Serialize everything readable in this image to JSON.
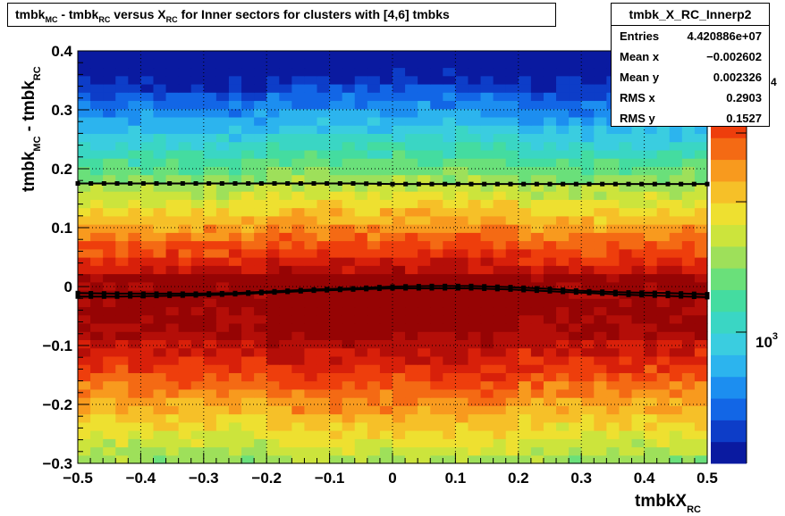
{
  "chart_data": {
    "type": "heatmap",
    "title_parts": [
      "tmbk",
      "MC",
      " - tmbk",
      "RC",
      " versus X",
      "RC",
      " for Inner sectors for clusters with [4,6] tmbks"
    ],
    "xlabel_main": "tmbkX",
    "xlabel_sub": "RC",
    "ylabel_parts": [
      "tmbk",
      "MC",
      " - tmbk",
      "RC"
    ],
    "xlim": [
      -0.5,
      0.5
    ],
    "ylim": [
      -0.3,
      0.4
    ],
    "x_ticks": [
      "−0.5",
      "−0.4",
      "−0.3",
      "−0.2",
      "−0.1",
      "0",
      "0.1",
      "0.2",
      "0.3",
      "0.4",
      "0.5"
    ],
    "x_tick_values": [
      -0.5,
      -0.4,
      -0.3,
      -0.2,
      -0.1,
      0,
      0.1,
      0.2,
      0.3,
      0.4,
      0.5
    ],
    "y_ticks": [
      "−0.3",
      "−0.2",
      "−0.1",
      "0",
      "0.1",
      "0.2",
      "0.3",
      "0.4"
    ],
    "y_tick_values": [
      -0.3,
      -0.2,
      -0.1,
      0,
      0.1,
      0.2,
      0.3,
      0.4
    ],
    "grid": true,
    "z_scale": "log",
    "z_labels": [
      "10",
      "3",
      "4"
    ],
    "profile_means": [
      -0.011,
      -0.012,
      -0.012,
      -0.012,
      -0.011,
      -0.008,
      -0.005,
      -0.003,
      0.0,
      0.001,
      0.001,
      -0.001,
      -0.004,
      -0.008,
      -0.01,
      -0.011,
      -0.013
    ],
    "profile_upper": [
      0.175,
      0.175,
      0.175,
      0.175,
      0.175,
      0.175,
      0.175,
      0.175,
      0.174,
      0.174,
      0.174,
      0.174,
      0.174,
      0.174,
      0.174,
      0.174,
      0.174
    ],
    "profile_lower": [
      -0.017,
      -0.017,
      -0.016,
      -0.015,
      -0.013,
      -0.01,
      -0.007,
      -0.005,
      -0.003,
      -0.003,
      -0.003,
      -0.005,
      -0.008,
      -0.011,
      -0.014,
      -0.016,
      -0.018
    ],
    "profile_x": [
      -0.5,
      -0.4375,
      -0.375,
      -0.3125,
      -0.25,
      -0.1875,
      -0.125,
      -0.0625,
      0,
      0.0625,
      0.125,
      0.1875,
      0.25,
      0.3125,
      0.375,
      0.4375,
      0.5
    ]
  },
  "stats": {
    "name": "tmbk_X_RC_Innerp2",
    "rows": [
      {
        "label": "Entries",
        "value": "4.420886e+07"
      },
      {
        "label": "Mean x",
        "value": "−0.002602"
      },
      {
        "label": "Mean y",
        "value": "0.002326"
      },
      {
        "label": "RMS x",
        "value": "0.2903"
      },
      {
        "label": "RMS y",
        "value": "0.1527"
      }
    ]
  },
  "palette": [
    "#0a1aa0",
    "#0d3dc8",
    "#1266e6",
    "#1c8ef0",
    "#2cb4ee",
    "#3acde0",
    "#3ad6c4",
    "#44dca0",
    "#6ae07a",
    "#9ee05a",
    "#cce43c",
    "#eee030",
    "#f6c028",
    "#f89a1e",
    "#f46a14",
    "#ee3e0c",
    "#d8200a",
    "#b40e08",
    "#960404"
  ]
}
